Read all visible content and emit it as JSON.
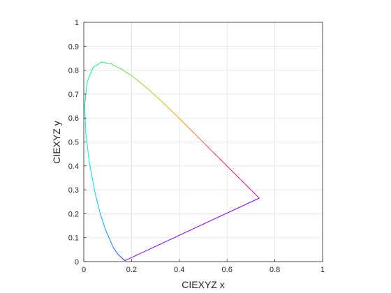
{
  "chart_data": {
    "type": "line",
    "title": "",
    "xlabel": "CIEXYZ x",
    "ylabel": "CIEXYZ y",
    "xlim": [
      0,
      1
    ],
    "ylim": [
      0,
      1
    ],
    "grid": true,
    "legend": "none",
    "x_ticks": [
      "0",
      "0.2",
      "0.4",
      "0.6",
      "0.8",
      "1"
    ],
    "y_ticks": [
      "0",
      "0.1",
      "0.2",
      "0.3",
      "0.4",
      "0.5",
      "0.6",
      "0.7",
      "0.8",
      "0.9",
      "1"
    ],
    "series": [
      {
        "points": [
          {
            "x": 0.1741,
            "y": 0.005,
            "color": "#7f00ff"
          },
          {
            "x": 0.172,
            "y": 0.0048,
            "color": "#6a00ff"
          },
          {
            "x": 0.1666,
            "y": 0.0089,
            "color": "#5000ff"
          },
          {
            "x": 0.1566,
            "y": 0.0177,
            "color": "#3a1fff"
          },
          {
            "x": 0.144,
            "y": 0.0297,
            "color": "#2a3fff"
          },
          {
            "x": 0.1241,
            "y": 0.0578,
            "color": "#1e64ff"
          },
          {
            "x": 0.0913,
            "y": 0.1327,
            "color": "#1088ff"
          },
          {
            "x": 0.0687,
            "y": 0.2007,
            "color": "#05a6ff"
          },
          {
            "x": 0.0454,
            "y": 0.295,
            "color": "#00c4ff"
          },
          {
            "x": 0.0235,
            "y": 0.4127,
            "color": "#00dcf5"
          },
          {
            "x": 0.0082,
            "y": 0.5384,
            "color": "#00ecdc"
          },
          {
            "x": 0.0039,
            "y": 0.6548,
            "color": "#00f5c0"
          },
          {
            "x": 0.0139,
            "y": 0.7502,
            "color": "#00f7a8"
          },
          {
            "x": 0.0389,
            "y": 0.812,
            "color": "#00f593"
          },
          {
            "x": 0.0743,
            "y": 0.8338,
            "color": "#10f07c"
          },
          {
            "x": 0.1142,
            "y": 0.8262,
            "color": "#2ceb66"
          },
          {
            "x": 0.1547,
            "y": 0.8059,
            "color": "#48e552"
          },
          {
            "x": 0.1929,
            "y": 0.7816,
            "color": "#64df42"
          },
          {
            "x": 0.2296,
            "y": 0.7543,
            "color": "#80d838"
          },
          {
            "x": 0.2658,
            "y": 0.7243,
            "color": "#9cd02e"
          },
          {
            "x": 0.3016,
            "y": 0.6923,
            "color": "#b8c826"
          },
          {
            "x": 0.3373,
            "y": 0.6589,
            "color": "#d2be20"
          },
          {
            "x": 0.3731,
            "y": 0.6245,
            "color": "#e8b01c"
          },
          {
            "x": 0.4087,
            "y": 0.5896,
            "color": "#f59e1c"
          },
          {
            "x": 0.4441,
            "y": 0.5547,
            "color": "#fa8a22"
          },
          {
            "x": 0.4788,
            "y": 0.5202,
            "color": "#fb762c"
          },
          {
            "x": 0.5125,
            "y": 0.4866,
            "color": "#fa6236"
          },
          {
            "x": 0.5448,
            "y": 0.4544,
            "color": "#f84e42"
          },
          {
            "x": 0.5752,
            "y": 0.4242,
            "color": "#f63c4e"
          },
          {
            "x": 0.6029,
            "y": 0.3965,
            "color": "#f42e5a"
          },
          {
            "x": 0.627,
            "y": 0.3725,
            "color": "#f22466"
          },
          {
            "x": 0.6482,
            "y": 0.3514,
            "color": "#f01e70"
          },
          {
            "x": 0.6658,
            "y": 0.334,
            "color": "#ee1a7a"
          },
          {
            "x": 0.6801,
            "y": 0.3197,
            "color": "#ec1882"
          },
          {
            "x": 0.6915,
            "y": 0.3083,
            "color": "#ea1688"
          },
          {
            "x": 0.714,
            "y": 0.2859,
            "color": "#e8168e"
          },
          {
            "x": 0.7347,
            "y": 0.2653,
            "color": "#e61692"
          },
          {
            "x": 0.1741,
            "y": 0.005,
            "color": "#8a00ff"
          }
        ]
      }
    ]
  }
}
